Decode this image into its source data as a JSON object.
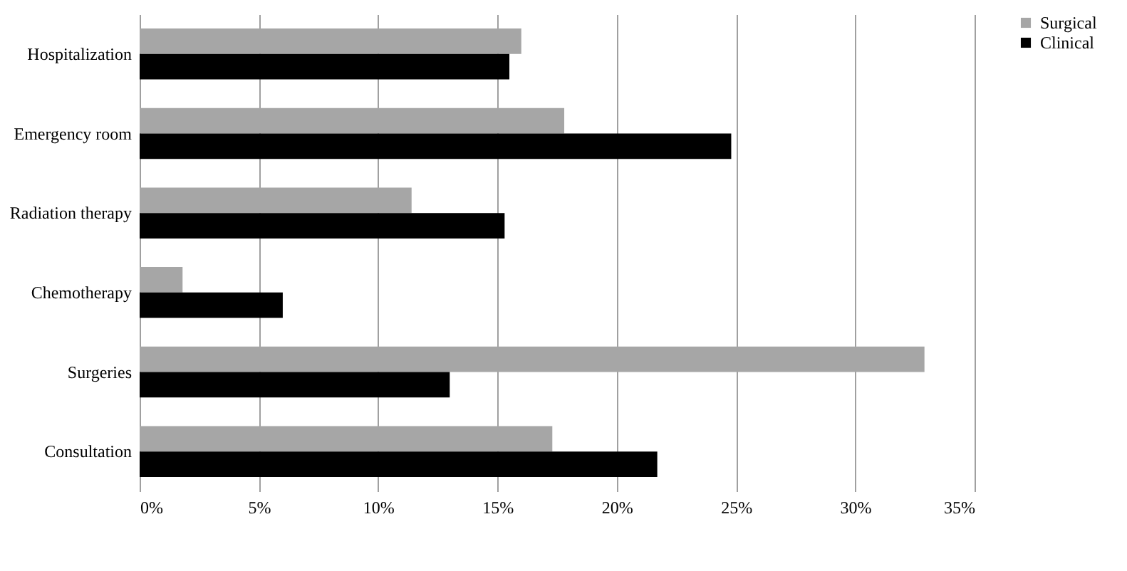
{
  "chart_data": {
    "type": "bar",
    "orientation": "horizontal",
    "categories": [
      "Hospitalization",
      "Emergency room",
      "Radiation therapy",
      "Chemotherapy",
      "Surgeries",
      "Consultation"
    ],
    "series": [
      {
        "name": "Surgical",
        "color": "#a6a6a6",
        "values": [
          16.0,
          17.8,
          11.4,
          1.8,
          32.9,
          17.3
        ]
      },
      {
        "name": "Clinical",
        "color": "#000000",
        "values": [
          15.5,
          24.8,
          15.3,
          6.0,
          13.0,
          21.7
        ]
      }
    ],
    "xlim": [
      0,
      35
    ],
    "xticks": [
      {
        "value": 0,
        "label": "0%"
      },
      {
        "value": 5,
        "label": "5%"
      },
      {
        "value": 10,
        "label": "10%"
      },
      {
        "value": 15,
        "label": "15%"
      },
      {
        "value": 20,
        "label": "20%"
      },
      {
        "value": 25,
        "label": "25%"
      },
      {
        "value": 30,
        "label": "30%"
      },
      {
        "value": 35,
        "label": "35%"
      }
    ],
    "grid": "x",
    "legend": "right"
  }
}
